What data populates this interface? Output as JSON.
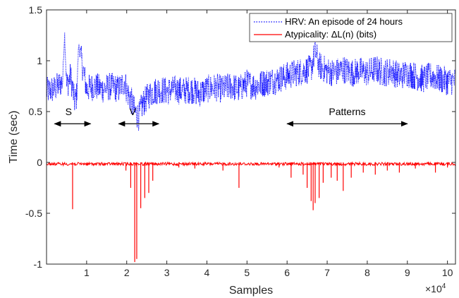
{
  "chart_data": {
    "type": "line",
    "title": "",
    "xlabel": "Samples",
    "ylabel": "Time (sec)",
    "x_exponent_label": "×10",
    "x_exponent_power": "4",
    "xlim": [
      0,
      102000
    ],
    "ylim": [
      -1,
      1.5
    ],
    "xticks": [
      10000,
      20000,
      30000,
      40000,
      50000,
      60000,
      70000,
      80000,
      90000,
      100000
    ],
    "xtick_labels": [
      "1",
      "2",
      "3",
      "4",
      "5",
      "6",
      "7",
      "8",
      "9",
      "10"
    ],
    "yticks": [
      -1,
      -0.5,
      0,
      0.5,
      1,
      1.5
    ],
    "ytick_labels": [
      "-1",
      "-0.5",
      "0",
      "0.5",
      "1",
      "1.5"
    ],
    "grid": false,
    "legend_position": "top-right",
    "series": [
      {
        "name": "HRV: An episode of 24 hours",
        "color": "#0000ff",
        "style": "dotted",
        "x": [
          0,
          2000,
          4000,
          4500,
          5000,
          6000,
          7000,
          7500,
          8000,
          10000,
          12000,
          14000,
          16000,
          18000,
          19500,
          20000,
          21000,
          22000,
          23000,
          24000,
          26000,
          28000,
          30000,
          32000,
          34000,
          36000,
          38000,
          40000,
          42000,
          44000,
          46000,
          48000,
          50000,
          52000,
          54000,
          56000,
          58000,
          60000,
          62000,
          64000,
          66000,
          67000,
          68000,
          70000,
          72000,
          74000,
          76000,
          78000,
          80000,
          82000,
          84000,
          86000,
          88000,
          90000,
          92000,
          94000,
          96000,
          98000,
          100000,
          102000
        ],
        "y": [
          0.7,
          0.72,
          0.8,
          1.28,
          0.75,
          0.85,
          0.6,
          0.65,
          1.15,
          0.72,
          0.75,
          0.72,
          0.75,
          0.72,
          0.8,
          0.7,
          0.62,
          0.5,
          0.45,
          0.58,
          0.68,
          0.72,
          0.7,
          0.72,
          0.7,
          0.72,
          0.68,
          0.72,
          0.74,
          0.72,
          0.75,
          0.72,
          0.78,
          0.75,
          0.78,
          0.8,
          0.82,
          0.85,
          0.88,
          0.9,
          0.92,
          1.1,
          0.95,
          0.9,
          0.88,
          0.92,
          0.88,
          0.9,
          0.88,
          0.92,
          0.88,
          0.9,
          0.85,
          0.88,
          0.85,
          0.82,
          0.85,
          0.82,
          0.8,
          0.8
        ]
      },
      {
        "name": "Atypicality: ΔL(n) (bits)",
        "color": "#ff0000",
        "style": "solid",
        "baseline": 0,
        "spikes_x": [
          6500,
          19800,
          21000,
          22000,
          22500,
          23500,
          24500,
          25500,
          26500,
          33000,
          37000,
          44000,
          48000,
          58000,
          61000,
          64000,
          65000,
          66000,
          66500,
          67000,
          68000,
          69000,
          71000,
          72500,
          74000,
          76000,
          79000,
          82000,
          85000,
          88000,
          92000,
          97000,
          100000
        ],
        "spikes_y": [
          -0.46,
          -0.08,
          -0.25,
          -0.98,
          -0.95,
          -0.45,
          -0.35,
          -0.3,
          -0.18,
          -0.05,
          -0.06,
          -0.08,
          -0.25,
          -0.05,
          -0.15,
          -0.12,
          -0.25,
          -0.38,
          -0.47,
          -0.4,
          -0.35,
          -0.2,
          -0.15,
          -0.18,
          -0.28,
          -0.15,
          -0.1,
          -0.12,
          -0.08,
          -0.1,
          -0.06,
          -0.1,
          -0.05
        ]
      }
    ],
    "annotations": [
      {
        "label": "S",
        "x_from": 2000,
        "x_to": 11000,
        "x_text": 5500,
        "y_arrow": 0.38,
        "y_text": 0.5
      },
      {
        "label": "V",
        "x_from": 18000,
        "x_to": 28000,
        "x_text": 21500,
        "y_arrow": 0.38,
        "y_text": 0.5
      },
      {
        "label": "Patterns",
        "x_from": 60000,
        "x_to": 90000,
        "x_text": 75000,
        "y_arrow": 0.38,
        "y_text": 0.5
      }
    ]
  }
}
